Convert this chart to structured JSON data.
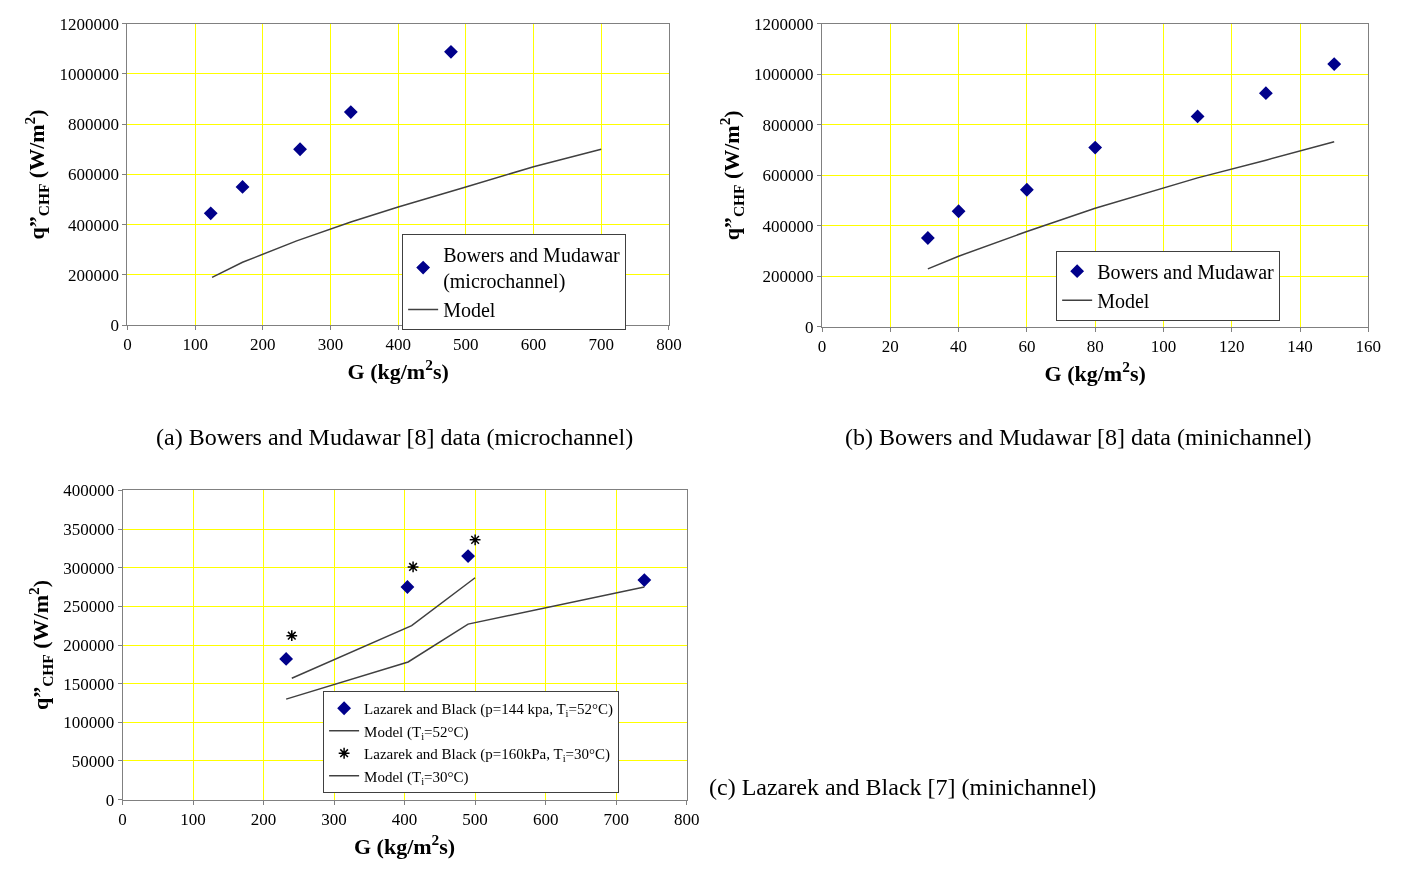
{
  "chart_data": [
    {
      "type": "scatter",
      "title": "(a) Bowers and Mudawar [8] data (microchannel)",
      "xlabel": "G (kg/m$^{2}$s)",
      "ylabel": "q”$_{CHF}$ (W/m$^{2}$)",
      "xlim": [
        0,
        800
      ],
      "xticks": [
        0,
        100,
        200,
        300,
        400,
        500,
        600,
        700,
        800
      ],
      "ylim": [
        0,
        1200000
      ],
      "yticks": [
        0,
        200000,
        400000,
        600000,
        800000,
        1000000,
        1200000
      ],
      "grid": true,
      "legend": "bottom right",
      "series": [
        {
          "name": "Bowers and Mudawar\n(microchannel)",
          "marker": "diamond",
          "color": "#00008b",
          "x": [
            123,
            170,
            255,
            330,
            478
          ],
          "values": [
            445000,
            550000,
            700000,
            848000,
            1088000
          ]
        },
        {
          "name": "Model",
          "type": "line",
          "marker": "none",
          "color": "#404040",
          "x": [
            125,
            170,
            250,
            330,
            400,
            500,
            600,
            700
          ],
          "values": [
            190000,
            250000,
            335000,
            410000,
            470000,
            550000,
            630000,
            700000
          ]
        }
      ]
    },
    {
      "type": "scatter",
      "title": "(b) Bowers and Mudawar [8] data (minichannel)",
      "xlabel": "G (kg/m$^{2}$s)",
      "ylabel": "q”$_{CHF}$ (W/m$^{2}$)",
      "xlim": [
        0,
        160
      ],
      "xticks": [
        0,
        20,
        40,
        60,
        80,
        100,
        120,
        140,
        160
      ],
      "ylim": [
        0,
        1200000
      ],
      "yticks": [
        0,
        200000,
        400000,
        600000,
        800000,
        1000000,
        1200000
      ],
      "grid": true,
      "legend": "bottom right",
      "series": [
        {
          "name": "Bowers and Mudawar",
          "marker": "diamond",
          "color": "#00008b",
          "x": [
            31,
            40,
            60,
            80,
            110,
            130,
            150
          ],
          "values": [
            352000,
            458000,
            543000,
            710000,
            833000,
            925000,
            1040000
          ]
        },
        {
          "name": "Model",
          "type": "line",
          "marker": "none",
          "color": "#404040",
          "x": [
            31,
            40,
            60,
            80,
            110,
            130,
            150
          ],
          "values": [
            230000,
            280000,
            378000,
            470000,
            590000,
            660000,
            733000
          ]
        }
      ]
    },
    {
      "type": "scatter",
      "title": "(c) Lazarek and Black [7] (minichannel)",
      "xlabel": "G (kg/m$^{2}$s)",
      "ylabel": "q”$_{CHF}$ (W/m$^{2}$)",
      "xlim": [
        0,
        800
      ],
      "xticks": [
        0,
        100,
        200,
        300,
        400,
        500,
        600,
        700,
        800
      ],
      "ylim": [
        0,
        400000
      ],
      "yticks": [
        0,
        50000,
        100000,
        150000,
        200000,
        250000,
        300000,
        350000,
        400000
      ],
      "grid": true,
      "legend": "bottom right",
      "series": [
        {
          "name": "Lazarek and Black (p=144 kpa, T$_{i}$=52°C)",
          "marker": "diamond",
          "color": "#00008b",
          "x": [
            232,
            404,
            490,
            740
          ],
          "values": [
            182000,
            275000,
            315000,
            284000
          ]
        },
        {
          "name": "Model (T$_{i}$=52°C)",
          "type": "line",
          "marker": "none",
          "color": "#404040",
          "x": [
            232,
            405,
            490,
            740
          ],
          "values": [
            130000,
            178000,
            227000,
            275000
          ]
        },
        {
          "name": "Lazarek and Black (p=160kPa, T$_{i}$=30°C)",
          "marker": "cross",
          "color": "#000000",
          "x": [
            240,
            412,
            500
          ],
          "values": [
            212000,
            301000,
            336000
          ]
        },
        {
          "name": "Model (T$_{i}$=30°C)",
          "type": "line",
          "marker": "none",
          "color": "#404040",
          "x": [
            240,
            410,
            500
          ],
          "values": [
            157000,
            225000,
            287000
          ]
        }
      ]
    }
  ]
}
